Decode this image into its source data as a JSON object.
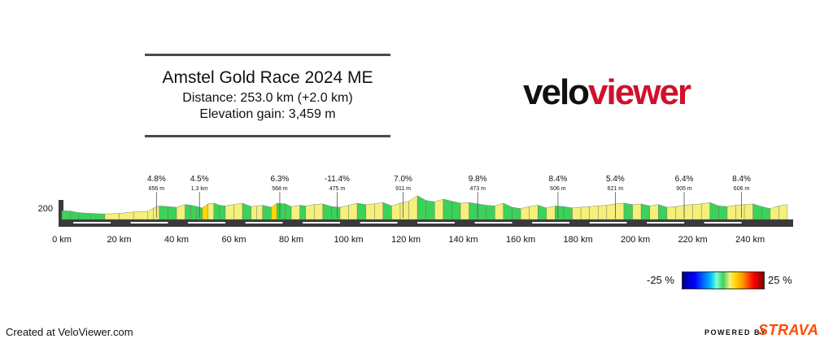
{
  "title": "Amstel Gold Race 2024 ME",
  "distance_line": "Distance: 253.0 km (+2.0 km)",
  "elevation_line": "Elevation gain: 3,459 m",
  "logo": {
    "part1": "velo",
    "part2": "viewer"
  },
  "legend": {
    "min": "-25 %",
    "max": "25 %"
  },
  "footer": {
    "created": "Created at VeloViewer.com",
    "powered": "POWERED BY",
    "brand": "STRAVA"
  },
  "colors": {
    "brand_red": "#d0112b",
    "strava_orange": "#fc4c02"
  },
  "chart_data": {
    "type": "area",
    "title": "Amstel Gold Race 2024 ME",
    "x_unit": "km",
    "x_ticks": [
      "0 km",
      "20 km",
      "40 km",
      "60 km",
      "80 km",
      "100 km",
      "120 km",
      "140 km",
      "160 km",
      "180 km",
      "200 km",
      "220 km",
      "240 km"
    ],
    "xlim": [
      0,
      255
    ],
    "y_ticks": [
      "200"
    ],
    "profile": {
      "x": [
        0,
        3,
        6,
        10,
        15,
        20,
        25,
        30,
        32,
        34,
        37,
        40,
        43,
        45,
        47,
        49,
        51,
        53,
        55,
        57,
        60,
        63,
        66,
        68,
        70,
        73,
        75,
        78,
        80,
        83,
        85,
        88,
        91,
        94,
        97,
        100,
        103,
        106,
        109,
        112,
        115,
        118,
        121,
        124,
        127,
        130,
        133,
        136,
        139,
        142,
        145,
        148,
        151,
        154,
        157,
        160,
        163,
        166,
        169,
        172,
        175,
        178,
        181,
        184,
        187,
        190,
        193,
        196,
        199,
        202,
        205,
        208,
        211,
        214,
        217,
        220,
        223,
        226,
        229,
        232,
        235,
        238,
        241,
        244,
        247,
        250,
        253
      ],
      "elevation_m": [
        65,
        62,
        50,
        45,
        40,
        45,
        55,
        60,
        85,
        100,
        95,
        90,
        110,
        105,
        95,
        85,
        115,
        120,
        105,
        100,
        110,
        120,
        95,
        100,
        105,
        90,
        120,
        115,
        95,
        105,
        100,
        110,
        115,
        95,
        90,
        105,
        120,
        110,
        115,
        125,
        100,
        120,
        135,
        175,
        140,
        130,
        150,
        135,
        120,
        125,
        115,
        105,
        100,
        120,
        90,
        80,
        95,
        105,
        85,
        100,
        95,
        85,
        90,
        95,
        100,
        105,
        115,
        120,
        110,
        115,
        100,
        110,
        90,
        95,
        105,
        110,
        115,
        125,
        100,
        95,
        105,
        110,
        115,
        95,
        80,
        100,
        110
      ]
    },
    "climbs": [
      {
        "km": 33,
        "gradient": "4.8%",
        "length": "656 m"
      },
      {
        "km": 48,
        "gradient": "4.5%",
        "length": "1.3 km"
      },
      {
        "km": 76,
        "gradient": "6.3%",
        "length": "568 m"
      },
      {
        "km": 96,
        "gradient": "-11.4%",
        "length": "475 m"
      },
      {
        "km": 119,
        "gradient": "7.0%",
        "length": "911 m"
      },
      {
        "km": 145,
        "gradient": "9.8%",
        "length": "473 m"
      },
      {
        "km": 173,
        "gradient": "8.4%",
        "length": "606 m"
      },
      {
        "km": 193,
        "gradient": "5.4%",
        "length": "621 m"
      },
      {
        "km": 217,
        "gradient": "6.4%",
        "length": "905 m"
      },
      {
        "km": 237,
        "gradient": "8.4%",
        "length": "606 m"
      }
    ],
    "color_scale": {
      "min_percent": -25,
      "max_percent": 25,
      "palette": [
        "#00008f",
        "#0000ff",
        "#00bfff",
        "#7fffd4",
        "#3cd25a",
        "#f5f07a",
        "#ffd700",
        "#ff8c00",
        "#ff0000",
        "#800000"
      ]
    },
    "grid": false
  }
}
